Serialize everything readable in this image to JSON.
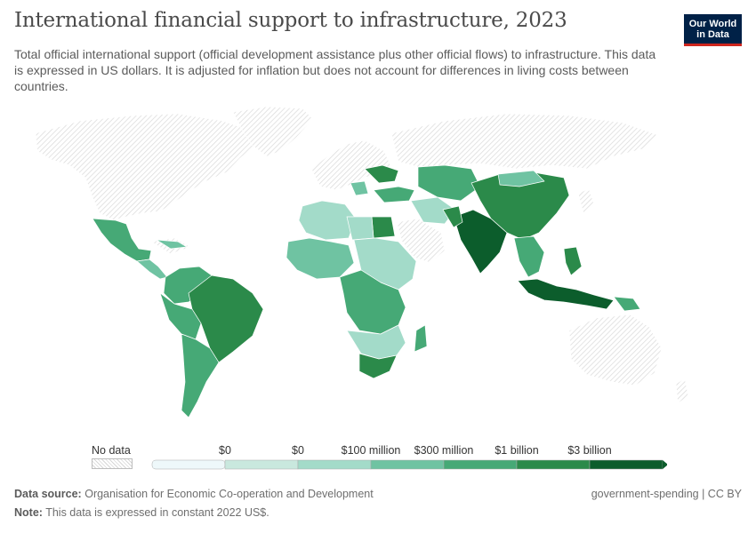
{
  "header": {
    "title": "International financial support to infrastructure, 2023",
    "subtitle": "Total official international support (official development assistance plus other official flows) to infrastructure. This data is expressed in US dollars. It is adjusted for inflation but does not account for differences in living costs between countries.",
    "logo_line1": "Our World",
    "logo_line2": "in Data"
  },
  "legend": {
    "no_data_label": "No data",
    "ticks": [
      "$0",
      "$0",
      "$100 million",
      "$300 million",
      "$1 billion",
      "$3 billion"
    ],
    "colors": [
      "#eef8fa",
      "#c9e8de",
      "#a3dbc9",
      "#6fc3a2",
      "#46a976",
      "#2b8a4a",
      "#0c5d2c"
    ]
  },
  "colors": {
    "no_data_fill": "#ffffff",
    "no_data_hatch": "#d6d6d6",
    "border": "#ffffff"
  },
  "footer": {
    "source_label": "Data source:",
    "source_text": "Organisation for Economic Co-operation and Development",
    "note_label": "Note:",
    "note_text": "This data is expressed in constant 2022 US$.",
    "topic": "government-spending | CC BY"
  }
}
